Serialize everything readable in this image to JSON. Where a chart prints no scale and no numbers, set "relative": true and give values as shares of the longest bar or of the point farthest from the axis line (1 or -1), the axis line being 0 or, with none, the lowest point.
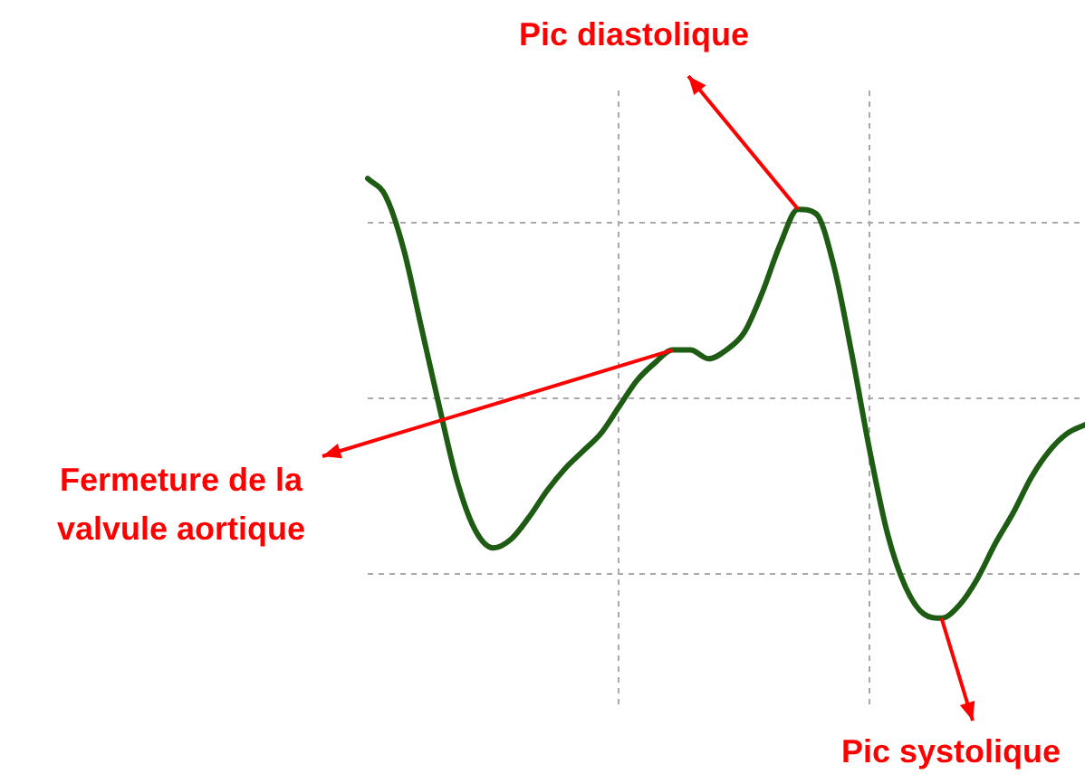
{
  "chart_data": {
    "type": "line",
    "relative": true,
    "legend": false,
    "marker": "none",
    "line_style": "solid",
    "categories": [
      null,
      null,
      null,
      null,
      null,
      null,
      null,
      null,
      null,
      null,
      null,
      null,
      null,
      null,
      null,
      null,
      null,
      null,
      null,
      null,
      null,
      null,
      null,
      null,
      null,
      null,
      null,
      null,
      null,
      null,
      null,
      null,
      null,
      null,
      null,
      null,
      null,
      null,
      null,
      null,
      null
    ],
    "series": [
      {
        "color": "#1e5c14",
        "values": [
          1.0,
          0.96,
          0.84,
          0.66,
          0.48,
          0.31,
          0.2,
          0.16,
          0.18,
          0.23,
          0.29,
          0.34,
          0.38,
          0.42,
          0.48,
          0.54,
          0.58,
          0.61,
          0.61,
          0.59,
          0.61,
          0.65,
          0.74,
          0.85,
          0.93,
          0.92,
          0.8,
          0.6,
          0.38,
          0.19,
          0.07,
          0.01,
          0.0,
          0.03,
          0.09,
          0.17,
          0.24,
          0.32,
          0.38,
          0.42,
          0.44
        ]
      }
    ],
    "annotations": [
      "Pic diastolique",
      "Fermeture de la\nvalvule aortique",
      "Pic systolique"
    ]
  }
}
